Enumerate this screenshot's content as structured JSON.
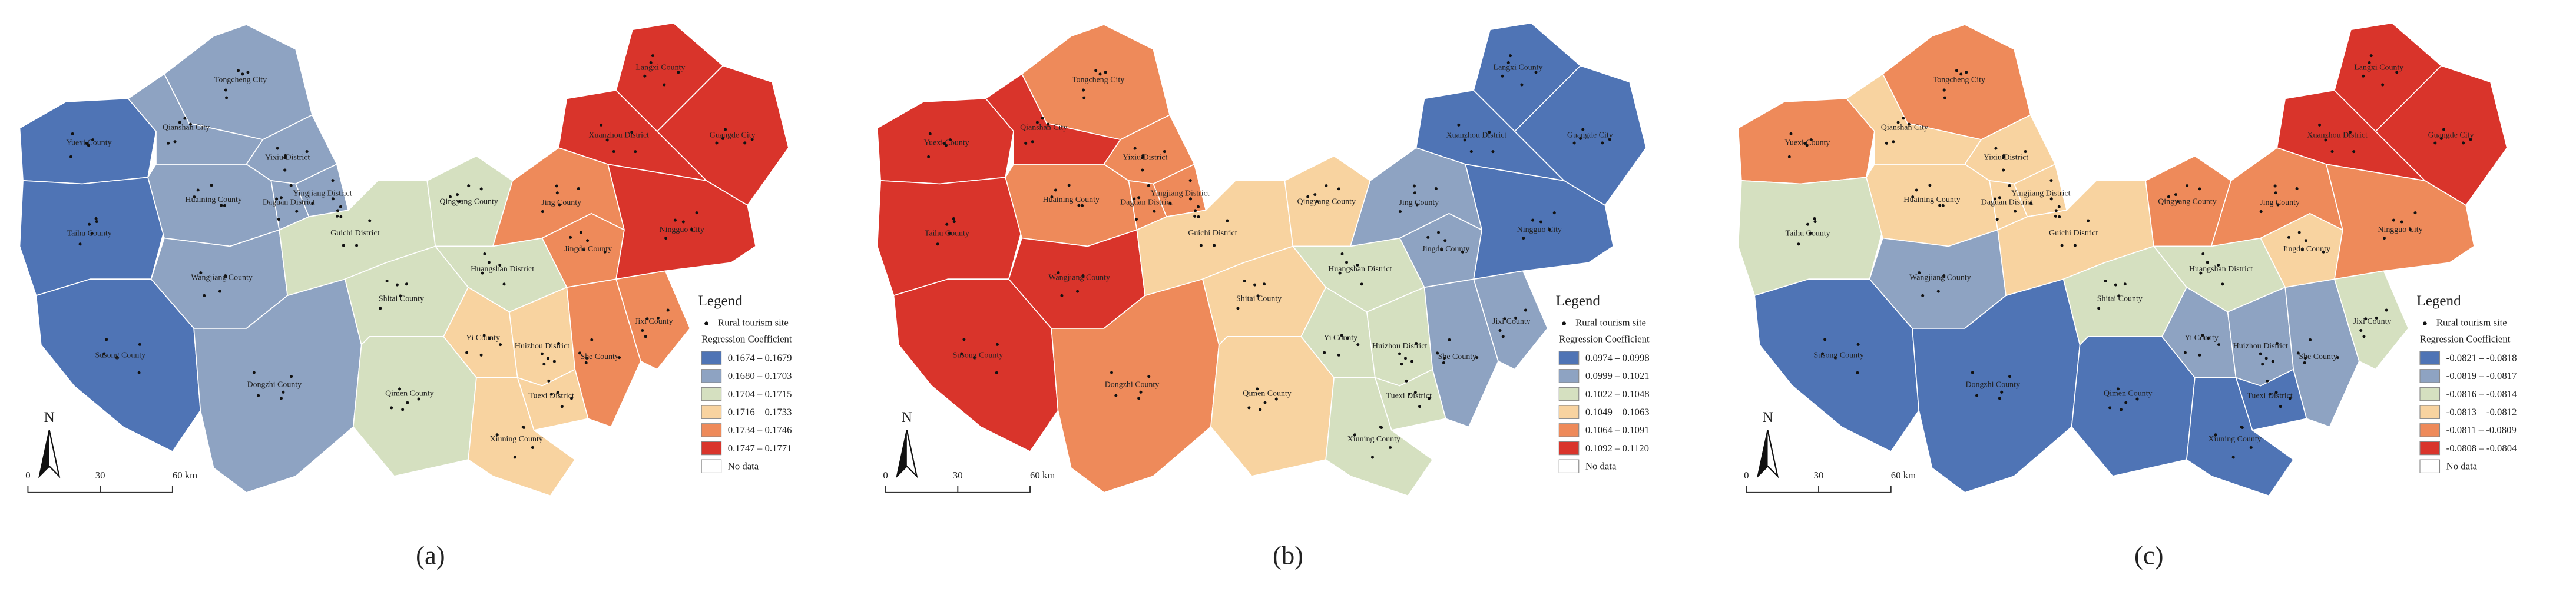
{
  "panels": [
    {
      "label": "(a)",
      "north": "N",
      "scale": [
        "0",
        "30",
        "60 km"
      ],
      "legend": {
        "title": "Legend",
        "point": "Rural tourism site",
        "subtitle": "Regression Coefficient",
        "no_data": "No data",
        "classes": [
          {
            "label": "0.1674 – 0.1679",
            "color": "#4f74b5"
          },
          {
            "label": "0.1680 – 0.1703",
            "color": "#8ea3c2"
          },
          {
            "label": "0.1704 – 0.1715",
            "color": "#d5e0c0"
          },
          {
            "label": "0.1716 – 0.1733",
            "color": "#f8d3a0"
          },
          {
            "label": "0.1734 – 0.1746",
            "color": "#ee8a5a"
          },
          {
            "label": "0.1747 – 0.1771",
            "color": "#d9342b"
          }
        ]
      },
      "regions": [
        {
          "name": "Yuexi County",
          "color": "#4f74b5"
        },
        {
          "name": "Taihu County",
          "color": "#4f74b5"
        },
        {
          "name": "Susong County",
          "color": "#4f74b5"
        },
        {
          "name": "Tongcheng City",
          "color": "#8ea3c2"
        },
        {
          "name": "Qianshan City",
          "color": "#8ea3c2"
        },
        {
          "name": "Huaining County",
          "color": "#8ea3c2"
        },
        {
          "name": "Yixiu District",
          "color": "#8ea3c2"
        },
        {
          "name": "Yingjiang District",
          "color": "#8ea3c2"
        },
        {
          "name": "Daguan District",
          "color": "#8ea3c2"
        },
        {
          "name": "Wangjiang County",
          "color": "#8ea3c2"
        },
        {
          "name": "Dongzhi County",
          "color": "#8ea3c2"
        },
        {
          "name": "Guichi District",
          "color": "#d5e0c0"
        },
        {
          "name": "Qingyang County",
          "color": "#d5e0c0"
        },
        {
          "name": "Shitai County",
          "color": "#d5e0c0"
        },
        {
          "name": "Qimen County",
          "color": "#d5e0c0"
        },
        {
          "name": "Huangshan District",
          "color": "#d5e0c0"
        },
        {
          "name": "Yi County",
          "color": "#f8d3a0"
        },
        {
          "name": "Huizhou District",
          "color": "#f8d3a0"
        },
        {
          "name": "Tuexi District",
          "color": "#f8d3a0"
        },
        {
          "name": "Xiuning County",
          "color": "#f8d3a0"
        },
        {
          "name": "She County",
          "color": "#ee8a5a"
        },
        {
          "name": "Jixi County",
          "color": "#ee8a5a"
        },
        {
          "name": "Jingde County",
          "color": "#ee8a5a"
        },
        {
          "name": "Jing County",
          "color": "#ee8a5a"
        },
        {
          "name": "Ningguo City",
          "color": "#d9342b"
        },
        {
          "name": "Xuanzhou District",
          "color": "#d9342b"
        },
        {
          "name": "Langxi County",
          "color": "#d9342b"
        },
        {
          "name": "Guangde City",
          "color": "#d9342b"
        }
      ]
    },
    {
      "label": "(b)",
      "north": "N",
      "scale": [
        "0",
        "30",
        "60 km"
      ],
      "legend": {
        "title": "Legend",
        "point": "Rural tourism site",
        "subtitle": "Regression Coefficient",
        "no_data": "No data",
        "classes": [
          {
            "label": "0.0974 – 0.0998",
            "color": "#4f74b5"
          },
          {
            "label": "0.0999 – 0.1021",
            "color": "#8ea3c2"
          },
          {
            "label": "0.1022 – 0.1048",
            "color": "#d5e0c0"
          },
          {
            "label": "0.1049 – 0.1063",
            "color": "#f8d3a0"
          },
          {
            "label": "0.1064 – 0.1091",
            "color": "#ee8a5a"
          },
          {
            "label": "0.1092 – 0.1120",
            "color": "#d9342b"
          }
        ]
      },
      "regions": [
        {
          "name": "Yuexi County",
          "color": "#d9342b"
        },
        {
          "name": "Taihu County",
          "color": "#d9342b"
        },
        {
          "name": "Susong County",
          "color": "#d9342b"
        },
        {
          "name": "Tongcheng City",
          "color": "#ee8a5a"
        },
        {
          "name": "Qianshan City",
          "color": "#d9342b"
        },
        {
          "name": "Huaining County",
          "color": "#ee8a5a"
        },
        {
          "name": "Yixiu District",
          "color": "#ee8a5a"
        },
        {
          "name": "Yingjiang District",
          "color": "#ee8a5a"
        },
        {
          "name": "Daguan District",
          "color": "#ee8a5a"
        },
        {
          "name": "Wangjiang County",
          "color": "#d9342b"
        },
        {
          "name": "Dongzhi County",
          "color": "#ee8a5a"
        },
        {
          "name": "Guichi District",
          "color": "#f8d3a0"
        },
        {
          "name": "Qingyang County",
          "color": "#f8d3a0"
        },
        {
          "name": "Shitai County",
          "color": "#f8d3a0"
        },
        {
          "name": "Qimen County",
          "color": "#f8d3a0"
        },
        {
          "name": "Huangshan District",
          "color": "#d5e0c0"
        },
        {
          "name": "Yi County",
          "color": "#d5e0c0"
        },
        {
          "name": "Huizhou District",
          "color": "#d5e0c0"
        },
        {
          "name": "Tuexi District",
          "color": "#d5e0c0"
        },
        {
          "name": "Xiuning County",
          "color": "#d5e0c0"
        },
        {
          "name": "She County",
          "color": "#8ea3c2"
        },
        {
          "name": "Jixi County",
          "color": "#8ea3c2"
        },
        {
          "name": "Jingde County",
          "color": "#8ea3c2"
        },
        {
          "name": "Jing County",
          "color": "#8ea3c2"
        },
        {
          "name": "Ningguo City",
          "color": "#4f74b5"
        },
        {
          "name": "Xuanzhou District",
          "color": "#4f74b5"
        },
        {
          "name": "Langxi County",
          "color": "#4f74b5"
        },
        {
          "name": "Guangde City",
          "color": "#4f74b5"
        }
      ]
    },
    {
      "label": "(c)",
      "north": "N",
      "scale": [
        "0",
        "30",
        "60 km"
      ],
      "legend": {
        "title": "Legend",
        "point": "Rural tourism site",
        "subtitle": "Regression Coefficient",
        "no_data": "No data",
        "classes": [
          {
            "label": "-0.0821 – -0.0818",
            "color": "#4f74b5"
          },
          {
            "label": "-0.0819 – -0.0817",
            "color": "#8ea3c2"
          },
          {
            "label": "-0.0816 – -0.0814",
            "color": "#d5e0c0"
          },
          {
            "label": "-0.0813 – -0.0812",
            "color": "#f8d3a0"
          },
          {
            "label": "-0.0811 – -0.0809",
            "color": "#ee8a5a"
          },
          {
            "label": "-0.0808 – -0.0804",
            "color": "#d9342b"
          }
        ]
      },
      "regions": [
        {
          "name": "Yuexi County",
          "color": "#ee8a5a"
        },
        {
          "name": "Taihu County",
          "color": "#d5e0c0"
        },
        {
          "name": "Susong County",
          "color": "#4f74b5"
        },
        {
          "name": "Tongcheng City",
          "color": "#ee8a5a"
        },
        {
          "name": "Qianshan City",
          "color": "#f8d3a0"
        },
        {
          "name": "Huaining County",
          "color": "#f8d3a0"
        },
        {
          "name": "Yixiu District",
          "color": "#f8d3a0"
        },
        {
          "name": "Yingjiang District",
          "color": "#f8d3a0"
        },
        {
          "name": "Daguan District",
          "color": "#f8d3a0"
        },
        {
          "name": "Wangjiang County",
          "color": "#8ea3c2"
        },
        {
          "name": "Dongzhi County",
          "color": "#4f74b5"
        },
        {
          "name": "Guichi District",
          "color": "#f8d3a0"
        },
        {
          "name": "Qingyang County",
          "color": "#ee8a5a"
        },
        {
          "name": "Shitai County",
          "color": "#d5e0c0"
        },
        {
          "name": "Qimen County",
          "color": "#4f74b5"
        },
        {
          "name": "Huangshan District",
          "color": "#d5e0c0"
        },
        {
          "name": "Yi County",
          "color": "#8ea3c2"
        },
        {
          "name": "Huizhou District",
          "color": "#8ea3c2"
        },
        {
          "name": "Tuexi District",
          "color": "#4f74b5"
        },
        {
          "name": "Xiuning County",
          "color": "#4f74b5"
        },
        {
          "name": "She County",
          "color": "#8ea3c2"
        },
        {
          "name": "Jixi County",
          "color": "#d5e0c0"
        },
        {
          "name": "Jingde County",
          "color": "#f8d3a0"
        },
        {
          "name": "Jing County",
          "color": "#ee8a5a"
        },
        {
          "name": "Ningguo City",
          "color": "#ee8a5a"
        },
        {
          "name": "Xuanzhou District",
          "color": "#d9342b"
        },
        {
          "name": "Langxi County",
          "color": "#d9342b"
        },
        {
          "name": "Guangde City",
          "color": "#d9342b"
        }
      ]
    }
  ]
}
